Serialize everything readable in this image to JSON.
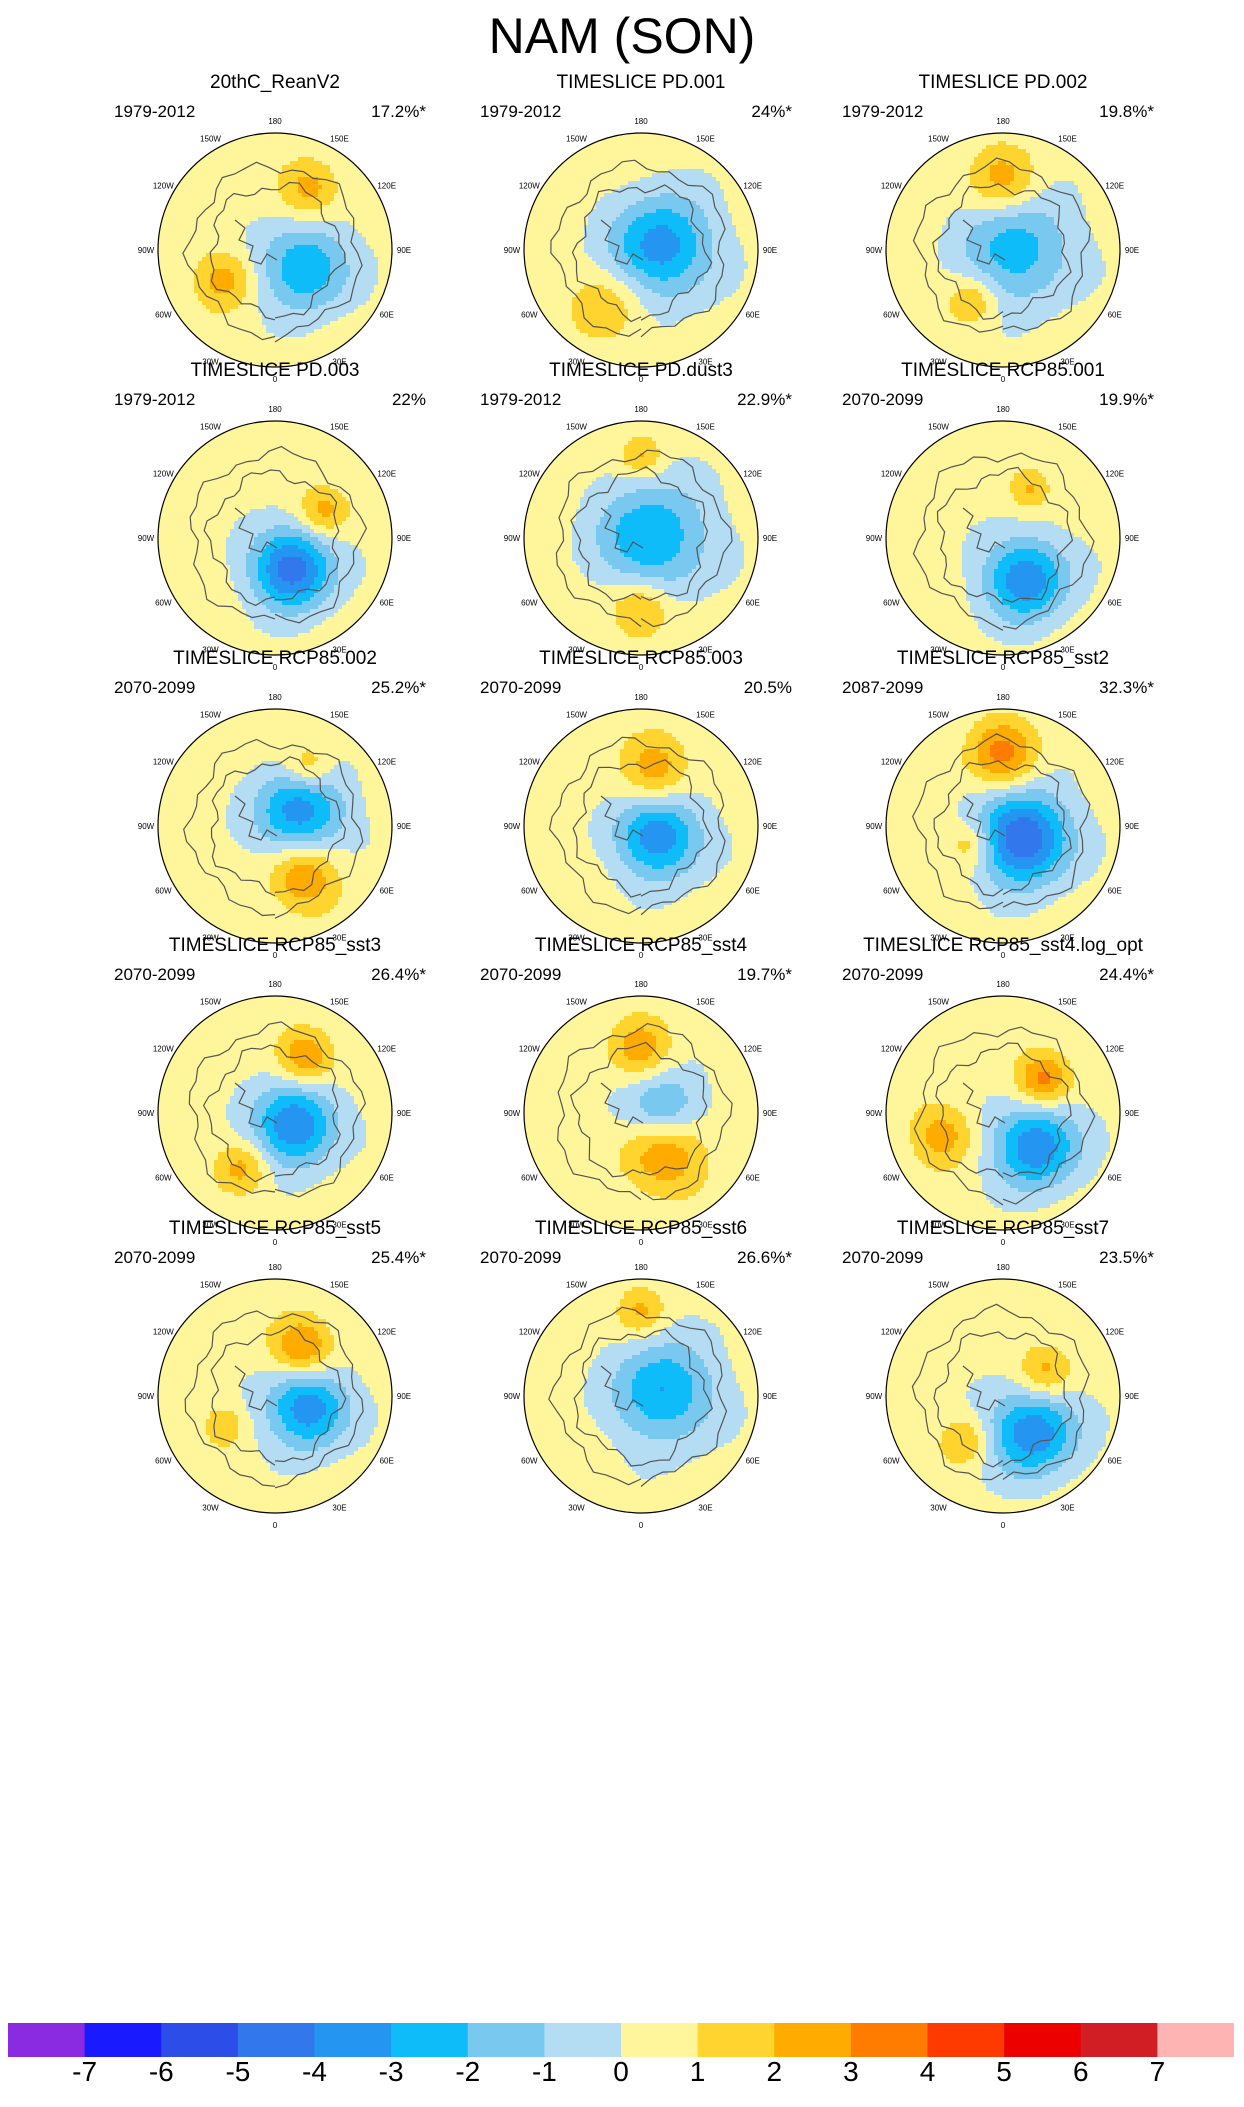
{
  "title": "NAM (SON)",
  "colors": {
    "ocean_line": "#555555",
    "frame": "#000000",
    "background": "#ffffff"
  },
  "chart_data": {
    "type": "heatmap",
    "projection": "north polar stereographic",
    "lon_labels": [
      "180",
      "150E",
      "120E",
      "90E",
      "60E",
      "30E",
      "0",
      "30W",
      "60W",
      "90W",
      "120W",
      "150W"
    ],
    "panels": [
      {
        "id": "p1",
        "title": "20thC_ReanV2",
        "period": "1979-2012",
        "variance": "17.2%*"
      },
      {
        "id": "p2",
        "title": "TIMESLICE PD.001",
        "period": "1979-2012",
        "variance": "24%*"
      },
      {
        "id": "p3",
        "title": "TIMESLICE PD.002",
        "period": "1979-2012",
        "variance": "19.8%*"
      },
      {
        "id": "p4",
        "title": "TIMESLICE PD.003",
        "period": "1979-2012",
        "variance": "22%"
      },
      {
        "id": "p5",
        "title": "TIMESLICE PD.dust3",
        "period": "1979-2012",
        "variance": "22.9%*"
      },
      {
        "id": "p6",
        "title": "TIMESLICE RCP85.001",
        "period": "2070-2099",
        "variance": "19.9%*"
      },
      {
        "id": "p7",
        "title": "TIMESLICE RCP85.002",
        "period": "2070-2099",
        "variance": "25.2%*"
      },
      {
        "id": "p8",
        "title": "TIMESLICE RCP85.003",
        "period": "2070-2099",
        "variance": "20.5%"
      },
      {
        "id": "p9",
        "title": "TIMESLICE RCP85_sst2",
        "period": "2087-2099",
        "variance": "32.3%*"
      },
      {
        "id": "p10",
        "title": "TIMESLICE RCP85_sst3",
        "period": "2070-2099",
        "variance": "26.4%*"
      },
      {
        "id": "p11",
        "title": "TIMESLICE RCP85_sst4",
        "period": "2070-2099",
        "variance": "19.7%*"
      },
      {
        "id": "p12",
        "title": "TIMESLICE RCP85_sst4.log_opt",
        "period": "2070-2099",
        "variance": "24.4%*"
      },
      {
        "id": "p13",
        "title": "TIMESLICE RCP85_sst5",
        "period": "2070-2099",
        "variance": "25.4%*"
      },
      {
        "id": "p14",
        "title": "TIMESLICE RCP85_sst6",
        "period": "2070-2099",
        "variance": "26.6%*"
      },
      {
        "id": "p15",
        "title": "TIMESLICE RCP85_sst7",
        "period": "2070-2099",
        "variance": "23.5%*"
      }
    ],
    "colorbar": {
      "tick_labels": [
        "-7",
        "-6",
        "-5",
        "-4",
        "-3",
        "-2",
        "-1",
        "0",
        "1",
        "2",
        "3",
        "4",
        "5",
        "6",
        "7"
      ],
      "colors": [
        "#8a2be2",
        "#1a1aff",
        "#2d4de8",
        "#3377ec",
        "#2496f2",
        "#0fbcfa",
        "#78c8f0",
        "#b4dcf2",
        "#fff59a",
        "#ffd42e",
        "#ffab00",
        "#ff7c00",
        "#ff3a00",
        "#ec0000",
        "#d01e24",
        "#ffb4b4"
      ]
    },
    "contour_levels": [
      -7,
      -6,
      -5,
      -4,
      -3,
      -2,
      -1,
      0,
      1,
      2,
      3,
      4,
      5,
      6,
      7
    ],
    "anomaly_patterns": [
      [
        {
          "lon": 60,
          "r": 0.3,
          "v": -3.4,
          "w": 0.26
        },
        {
          "lon": 150,
          "r": 0.6,
          "v": 2.2,
          "w": 0.17
        },
        {
          "lon": 300,
          "r": 0.5,
          "v": 2.1,
          "w": 0.17
        }
      ],
      [
        {
          "lon": 100,
          "r": 0.18,
          "v": -4.0,
          "w": 0.3
        },
        {
          "lon": 330,
          "r": 0.55,
          "v": 1.5,
          "w": 0.22
        }
      ],
      [
        {
          "lon": 90,
          "r": 0.12,
          "v": -3.0,
          "w": 0.32
        },
        {
          "lon": 180,
          "r": 0.6,
          "v": 2.2,
          "w": 0.2
        },
        {
          "lon": 330,
          "r": 0.5,
          "v": 1.8,
          "w": 0.15
        }
      ],
      [
        {
          "lon": 30,
          "r": 0.3,
          "v": -5.0,
          "w": 0.24
        },
        {
          "lon": 120,
          "r": 0.48,
          "v": 2.2,
          "w": 0.15
        }
      ],
      [
        {
          "lon": 90,
          "r": 0.1,
          "v": -3.4,
          "w": 0.33
        },
        {
          "lon": 0,
          "r": 0.6,
          "v": 2.3,
          "w": 0.18
        },
        {
          "lon": 180,
          "r": 0.7,
          "v": 1.8,
          "w": 0.12
        }
      ],
      [
        {
          "lon": 30,
          "r": 0.4,
          "v": -4.2,
          "w": 0.25
        },
        {
          "lon": 150,
          "r": 0.48,
          "v": 1.8,
          "w": 0.12
        }
      ],
      [
        {
          "lon": 120,
          "r": 0.25,
          "v": -4.0,
          "w": 0.26
        },
        {
          "lon": 30,
          "r": 0.5,
          "v": 2.8,
          "w": 0.2
        },
        {
          "lon": 150,
          "r": 0.58,
          "v": 2.0,
          "w": 0.14
        }
      ],
      [
        {
          "lon": 60,
          "r": 0.18,
          "v": -4.2,
          "w": 0.25
        },
        {
          "lon": 165,
          "r": 0.5,
          "v": 2.3,
          "w": 0.2
        }
      ],
      [
        {
          "lon": 60,
          "r": 0.2,
          "v": -5.5,
          "w": 0.27
        },
        {
          "lon": 180,
          "r": 0.62,
          "v": 3.0,
          "w": 0.2
        },
        {
          "lon": 300,
          "r": 0.3,
          "v": 2.0,
          "w": 0.14
        }
      ],
      [
        {
          "lon": 60,
          "r": 0.2,
          "v": -4.5,
          "w": 0.24
        },
        {
          "lon": 150,
          "r": 0.55,
          "v": 2.8,
          "w": 0.16
        },
        {
          "lon": 330,
          "r": 0.55,
          "v": 2.0,
          "w": 0.15
        }
      ],
      [
        {
          "lon": 100,
          "r": 0.2,
          "v": -2.8,
          "w": 0.22
        },
        {
          "lon": 30,
          "r": 0.4,
          "v": 2.8,
          "w": 0.24
        },
        {
          "lon": 180,
          "r": 0.55,
          "v": 2.2,
          "w": 0.18
        }
      ],
      [
        {
          "lon": 45,
          "r": 0.4,
          "v": -4.3,
          "w": 0.25
        },
        {
          "lon": 130,
          "r": 0.45,
          "v": 3.2,
          "w": 0.16
        },
        {
          "lon": 290,
          "r": 0.55,
          "v": 2.2,
          "w": 0.18
        }
      ],
      [
        {
          "lon": 70,
          "r": 0.3,
          "v": -4.2,
          "w": 0.24
        },
        {
          "lon": 150,
          "r": 0.48,
          "v": 3.0,
          "w": 0.18
        },
        {
          "lon": 300,
          "r": 0.5,
          "v": 1.5,
          "w": 0.12
        }
      ],
      [
        {
          "lon": 100,
          "r": 0.2,
          "v": -3.5,
          "w": 0.3
        },
        {
          "lon": 180,
          "r": 0.72,
          "v": 1.8,
          "w": 0.14
        }
      ],
      [
        {
          "lon": 40,
          "r": 0.4,
          "v": -4.2,
          "w": 0.26
        },
        {
          "lon": 120,
          "r": 0.42,
          "v": 2.2,
          "w": 0.16
        },
        {
          "lon": 320,
          "r": 0.5,
          "v": 1.8,
          "w": 0.14
        }
      ]
    ]
  }
}
